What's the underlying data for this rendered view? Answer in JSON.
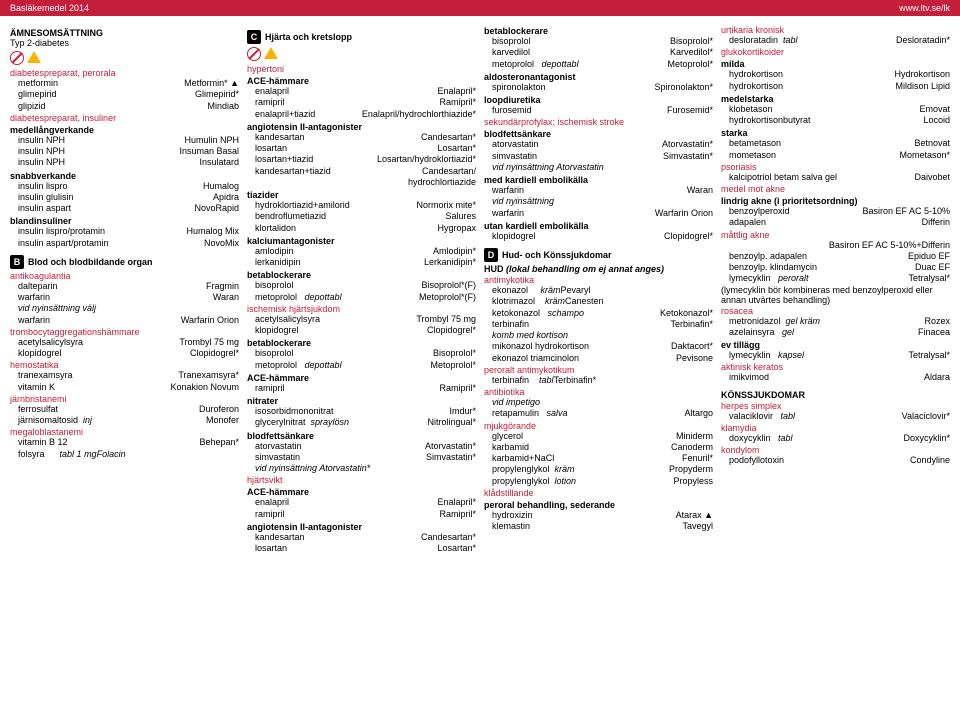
{
  "hdr": {
    "l": "Basläkemedel 2014",
    "r": "www.ltv.se/lk"
  },
  "c1": {
    "t1": "ÄMNESOMSÄTTNING",
    "t2": "Typ 2-diabetes",
    "s1": {
      "h": "diabetespreparat, perorala",
      "r": [
        [
          "metformin",
          "Metformin* ▲"
        ],
        [
          "glimepirid",
          "Glimepirid*"
        ],
        [
          "glipizid",
          "Mindiab"
        ]
      ]
    },
    "s2": {
      "h": "diabetespreparat, insuliner",
      "h2": "medellångverkande",
      "r": [
        [
          "insulin NPH",
          "Humulin NPH"
        ],
        [
          "insulin NPH",
          "Insuman Basal"
        ],
        [
          "insulin NPH",
          "Insulatard"
        ]
      ]
    },
    "s3": {
      "h": "snabbverkande",
      "r": [
        [
          "insulin lispro",
          "Humalog"
        ],
        [
          "insulin glulisin",
          "Apidra"
        ],
        [
          "insulin aspart",
          "NovoRapid"
        ]
      ]
    },
    "s4": {
      "h": "blandinsuliner",
      "r": [
        [
          "insulin lispro/protamin",
          "Humalog Mix"
        ],
        [
          "insulin aspart/protamin",
          "NovoMix"
        ]
      ]
    },
    "b": {
      "l": "B",
      "t": "Blod och blodbildande organ"
    },
    "s5": {
      "h": "antikoagulantia",
      "r": [
        [
          "dalteparin",
          "Fragmin"
        ],
        [
          "warfarin",
          "Waran"
        ]
      ],
      "i": "vid nyinsättning välj",
      "r2": [
        [
          "warfarin",
          "Warfarin Orion"
        ]
      ]
    },
    "s6": {
      "h": "trombocytaggregationshämmare",
      "r": [
        [
          "acetylsalicylsyra",
          "Trombyl 75 mg"
        ],
        [
          "klopidogrel",
          "Clopidogrel*"
        ]
      ]
    },
    "s7": {
      "h": "hemostatika",
      "r": [
        [
          "tranexamsyra",
          "Tranexamsyra*"
        ],
        [
          "vitamin K",
          "Konakion Novum"
        ]
      ]
    },
    "s8": {
      "h": "järnbristanemi",
      "r": [
        [
          "ferrosulfat",
          "Duroferon"
        ],
        [
          "järnisomaltosid   inj",
          "Monofer"
        ]
      ]
    },
    "s9": {
      "h": "megaloblastanemi",
      "r": [
        [
          "vitamin B 12",
          "Behepan*"
        ],
        [
          "folsyra         tabl 1 mg",
          "Folacin"
        ]
      ]
    }
  },
  "c2": {
    "b": {
      "l": "C",
      "t": "Hjärta och kretslopp"
    },
    "s1": {
      "h": "hypertoni",
      "h2": "ACE-hämmare",
      "r": [
        [
          "enalapril",
          "Enalapril*"
        ],
        [
          "ramipril",
          "Ramipril*"
        ],
        [
          "enalapril+tiazid",
          "Enalapril/hydrochlorthiazide*"
        ]
      ]
    },
    "s2": {
      "h": "angiotensin II-antagonister",
      "r": [
        [
          "kandesartan",
          "Candesartan*"
        ],
        [
          "losartan",
          "Losartan*"
        ],
        [
          "losartan+tiazid",
          "Losartan/hydroklortiazid*"
        ],
        [
          "kandesartan+tiazid",
          "Candesartan/"
        ],
        [
          "",
          "hydrochlortiazide"
        ]
      ]
    },
    "s3": {
      "h": "tiazider",
      "r": [
        [
          "hydroklortiazid+amilorid",
          "Normorix mite*"
        ],
        [
          "bendroflumetiazid",
          "Salures"
        ],
        [
          "klortalidon",
          "Hygropax"
        ]
      ]
    },
    "s4": {
      "h": "kalciumantagonister",
      "r": [
        [
          "amlodipin",
          "Amlodipin*"
        ],
        [
          "lerkanidipin",
          "Lerkanidipin*"
        ]
      ]
    },
    "s5": {
      "h": "betablockerare",
      "r": [
        [
          "bisoprolol",
          "Bisoprolol*(F)"
        ],
        [
          "metoprolol     depottabl",
          "Metoprolol*(F)"
        ]
      ]
    },
    "s6": {
      "h": "ischemisk hjärtsjukdom",
      "r": [
        [
          "acetylsalicylsyra",
          "Trombyl 75 mg"
        ],
        [
          "klopidogrel",
          "Clopidogrel*"
        ]
      ]
    },
    "s7": {
      "h": "betablockerare",
      "r": [
        [
          "bisoprolol",
          "Bisoprolol*"
        ],
        [
          "metoprolol     depottabl",
          "Metoprolol*"
        ]
      ]
    },
    "s8": {
      "h": "ACE-hämmare",
      "r": [
        [
          "ramipril",
          "Ramipril*"
        ]
      ]
    },
    "s9": {
      "h": "nitrater",
      "r": [
        [
          "isosorbidmononitrat",
          "Imdur*"
        ],
        [
          "glycerylnitrat   spraylösn",
          "Nitrolingual*"
        ]
      ]
    },
    "s10": {
      "h": "blodfettsänkare",
      "r": [
        [
          "atorvastatin",
          "Atorvastatin*"
        ],
        [
          "simvastatin",
          "Simvastatin*"
        ]
      ],
      "i": "vid nyinsättning Atorvastatin*"
    },
    "s11": {
      "h": "hjärtsvikt",
      "h2": "ACE-hämmare",
      "r": [
        [
          "enalapril",
          "Enalapril*"
        ],
        [
          "ramipril",
          "Ramipril*"
        ]
      ]
    },
    "s12": {
      "h": "angiotensin II-antagonister",
      "r": [
        [
          "kandesartan",
          "Candesartan*"
        ],
        [
          "losartan",
          "Losartan*"
        ]
      ]
    }
  },
  "c3": {
    "s1": {
      "h": "betablockerare",
      "r": [
        [
          "bisoprolol",
          "Bisoprolol*"
        ],
        [
          "karvedilol",
          "Karvedilol*"
        ],
        [
          "metoprolol     depottabl",
          "Metoprolol*"
        ]
      ]
    },
    "s2": {
      "h": "aldosteronantagonist",
      "r": [
        [
          "spironolakton",
          "Spironolakton*"
        ]
      ]
    },
    "s3": {
      "h": "loopdiuretika",
      "r": [
        [
          "furosemid",
          "Furosemid*"
        ]
      ]
    },
    "s4": {
      "h": "sekundärprofylax; ischemisk stroke",
      "h2": "blodfettsänkare",
      "r": [
        [
          "atorvastatin",
          "Atorvastatin*"
        ],
        [
          "simvastatin",
          "Simvastatin*"
        ]
      ],
      "i": "vid nyinsättning Atorvastatin"
    },
    "s5": {
      "h": "med kardiell embolikälla",
      "r": [
        [
          "warfarin",
          "Waran"
        ]
      ],
      "i": "vid nyinsättning",
      "r2": [
        [
          "warfarin",
          "Warfarin Orion"
        ]
      ]
    },
    "s6": {
      "h": "utan kardiell embolikälla",
      "r": [
        [
          "klopidogrel",
          "Clopidogrel*"
        ]
      ]
    },
    "b": {
      "l": "D",
      "t": "Hud- och Könssjukdomar"
    },
    "s7": {
      "h": "HUD (lokal behandling om ej annat anges)",
      "h2": "antimykotika",
      "r": [
        [
          "ekonazol        kräm",
          "Pevaryl"
        ],
        [
          "klotrimazol      kräm",
          "Canesten"
        ],
        [
          "ketokonazol    schampo",
          "Ketokonazol*"
        ],
        [
          "terbinafin",
          "Terbinafin*"
        ]
      ]
    },
    "s8": {
      "i": "komb med kortison",
      "r": [
        [
          "mikonazol hydrokortison",
          "Daktacort*"
        ],
        [
          "ekonazol triamcinolon",
          "Pevisone"
        ]
      ]
    },
    "s9": {
      "h": "peroralt antimykotikum",
      "r": [
        [
          "terbinafin      tabl",
          "Terbinafin*"
        ]
      ]
    },
    "s10": {
      "h": "antibiotika",
      "i": "vid impetigo",
      "r": [
        [
          "retapamulin    salva",
          "Altargo"
        ]
      ]
    },
    "s11": {
      "h": "mjukgörande",
      "r": [
        [
          "glycerol",
          "Miniderm"
        ],
        [
          "karbamid",
          "Canoderm"
        ],
        [
          "karbamid+NaCl",
          "Fenuril*"
        ],
        [
          "propylenglykol   kräm",
          "Propyderm"
        ],
        [
          "propylenglykol   lotion",
          "Propyless"
        ]
      ]
    },
    "s12": {
      "h": "klådstillande",
      "h2": "peroral behandling, sederande",
      "r": [
        [
          "hydroxizin",
          "Atarax ▲"
        ],
        [
          "klemastin",
          "Tavegyl"
        ]
      ]
    }
  },
  "c4": {
    "s1": {
      "h": "urtikaria kronisk",
      "r": [
        [
          "desloratadin   tabl",
          "Desloratadin*"
        ]
      ]
    },
    "s2": {
      "h": "glukokortikoider",
      "h2": "milda",
      "r": [
        [
          "hydrokortison",
          "Hydrokortison"
        ],
        [
          "hydrokortison",
          "Mildison Lipid"
        ]
      ]
    },
    "s3": {
      "h": "medelstarka",
      "r": [
        [
          "klobetason",
          "Emovat"
        ],
        [
          "hydrokortisonbutyrat",
          "Locoid"
        ]
      ]
    },
    "s4": {
      "h": "starka",
      "r": [
        [
          "betametason",
          "Betnovat"
        ],
        [
          "mometason",
          "Mometason*"
        ]
      ]
    },
    "s5": {
      "h": "psoriasis",
      "r": [
        [
          "kalcipotriol betam salva gel",
          "Daivobet"
        ]
      ]
    },
    "s6": {
      "h": "medel mot akne",
      "h2": "lindrig akne (i prioritetsordning)",
      "r": [
        [
          "benzoylperoxid",
          "Basiron EF AC 5-10%"
        ],
        [
          "adapalen",
          "Differin"
        ]
      ]
    },
    "s7": {
      "h": "måttlig akne",
      "r": [
        [
          "",
          "Basiron EF AC 5-10%+Differin"
        ],
        [
          "benzoylp. adapalen",
          "Epiduo EF"
        ],
        [
          "benzoylp. klindamycin",
          "Duac EF"
        ],
        [
          "lymecyklin    peroralt",
          "Tetralysal*"
        ]
      ],
      "n": "(lymecyklin bör kombineras med benzoylperoxid eller annan utvärtes behandling)"
    },
    "s8": {
      "h": "rosacea",
      "r": [
        [
          "metronidazol   gel kräm",
          "Rozex"
        ],
        [
          "azelainsyra     gel",
          "Finacea"
        ]
      ]
    },
    "s9": {
      "h": "ev tillägg",
      "r": [
        [
          "lymecyklin    kapsel",
          "Tetralysal*"
        ]
      ]
    },
    "s10": {
      "h": "aktinisk keratos",
      "r": [
        [
          "imikvimod",
          "Aldara"
        ]
      ]
    },
    "t1": "KÖNSSJUKDOMAR",
    "s11": {
      "h": "herpes simplex",
      "r": [
        [
          "valaciklovir    tabl",
          "Valaciclovir*"
        ]
      ]
    },
    "s12": {
      "h": "klamydia",
      "r": [
        [
          "doxycyklin     tabl",
          "Doxycyklin*"
        ]
      ]
    },
    "s13": {
      "h": "kondylom",
      "r": [
        [
          "podofyllotoxin",
          "Condyline"
        ]
      ]
    }
  }
}
